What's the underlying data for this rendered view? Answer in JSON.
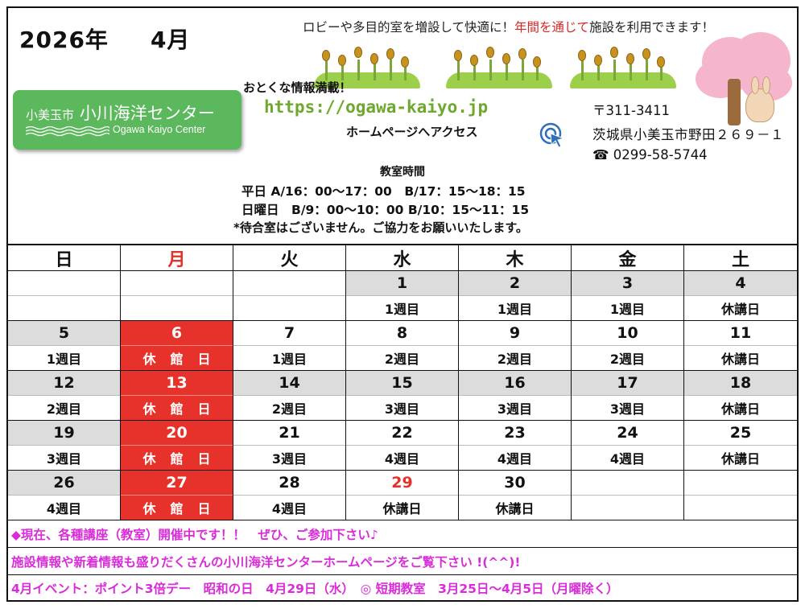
{
  "header": {
    "year": "2026年",
    "month": "4月",
    "promo_before": "ロビーや多目的室を増設して快適に！",
    "promo_red": "年間を通じて",
    "promo_after": "施設を利用できます！"
  },
  "logo": {
    "city": "小美玉市",
    "name": "小川海洋センター",
    "sub": "Ogawa Kaiyo Center"
  },
  "web": {
    "deal_title": "おとくな情報満載！",
    "url": "https://ogawa-kaiyo.jp",
    "access": "ホームページへアクセス"
  },
  "address": {
    "postal": "〒311-3411",
    "street": "茨城県小美玉市野田２６９－１",
    "phone": "☎ 0299-58-5744"
  },
  "class_hours": {
    "title": "教室時間",
    "weekday": "平日 A/16：00～17：00　B/17：15～18：15",
    "sunday": "日曜日　B/9：00～10：00 B/10：15～11：15",
    "note": "*待合室はございません。ご協力をお願いいたします。"
  },
  "weekdays": [
    "日",
    "月",
    "火",
    "水",
    "木",
    "金",
    "土"
  ],
  "weeks": [
    [
      {
        "date": "",
        "label": "",
        "type": "blank"
      },
      {
        "date": "",
        "label": "",
        "type": "blank"
      },
      {
        "date": "",
        "label": "",
        "type": "blank"
      },
      {
        "date": "1",
        "label": "1週目",
        "type": "gray"
      },
      {
        "date": "2",
        "label": "1週目",
        "type": "gray"
      },
      {
        "date": "3",
        "label": "1週目",
        "type": "gray"
      },
      {
        "date": "4",
        "label": "休講日",
        "type": "gray"
      }
    ],
    [
      {
        "date": "5",
        "label": "1週目",
        "type": "gray"
      },
      {
        "date": "6",
        "label": "休館日",
        "type": "closed"
      },
      {
        "date": "7",
        "label": "1週目",
        "type": "plain"
      },
      {
        "date": "8",
        "label": "2週目",
        "type": "plain"
      },
      {
        "date": "9",
        "label": "2週目",
        "type": "plain"
      },
      {
        "date": "10",
        "label": "2週目",
        "type": "plain"
      },
      {
        "date": "11",
        "label": "休講日",
        "type": "plain"
      }
    ],
    [
      {
        "date": "12",
        "label": "2週目",
        "type": "gray"
      },
      {
        "date": "13",
        "label": "休館日",
        "type": "closed"
      },
      {
        "date": "14",
        "label": "2週目",
        "type": "gray"
      },
      {
        "date": "15",
        "label": "3週目",
        "type": "gray"
      },
      {
        "date": "16",
        "label": "3週目",
        "type": "gray"
      },
      {
        "date": "17",
        "label": "3週目",
        "type": "gray"
      },
      {
        "date": "18",
        "label": "休講日",
        "type": "gray"
      }
    ],
    [
      {
        "date": "19",
        "label": "3週目",
        "type": "gray"
      },
      {
        "date": "20",
        "label": "休館日",
        "type": "closed"
      },
      {
        "date": "21",
        "label": "3週目",
        "type": "plain"
      },
      {
        "date": "22",
        "label": "4週目",
        "type": "plain"
      },
      {
        "date": "23",
        "label": "4週目",
        "type": "plain"
      },
      {
        "date": "24",
        "label": "4週目",
        "type": "plain"
      },
      {
        "date": "25",
        "label": "休講日",
        "type": "plain"
      }
    ],
    [
      {
        "date": "26",
        "label": "4週目",
        "type": "gray"
      },
      {
        "date": "27",
        "label": "休館日",
        "type": "closed"
      },
      {
        "date": "28",
        "label": "4週目",
        "type": "plain"
      },
      {
        "date": "29",
        "label": "休講日",
        "type": "holiday"
      },
      {
        "date": "30",
        "label": "休講日",
        "type": "plain"
      },
      {
        "date": "",
        "label": "",
        "type": "blank"
      },
      {
        "date": "",
        "label": "",
        "type": "blank"
      }
    ]
  ],
  "footer": {
    "line1": "◆現在、各種講座（教室）開催中です！！　ぜひ、ご参加下さい♪",
    "line2": "施設情報や新着情報も盛りだくさんの小川海洋センターホームページをご覧下さい !(^^)!",
    "line3": "4月イベント：ポイント3倍デー　昭和の日　4月29日（水）　◎ 短期教室　3月25日～4月5日（月曜除く）"
  },
  "colors": {
    "closed": "#e6322a",
    "gray": "#dcdcdc",
    "footer_text": "#d92bd9",
    "url": "#6fa82e",
    "logo_bg": "#5cb85c"
  },
  "icons": [
    "cursor-click-icon",
    "phone-icon",
    "sakura-tree-illustration",
    "bush-illustration"
  ]
}
